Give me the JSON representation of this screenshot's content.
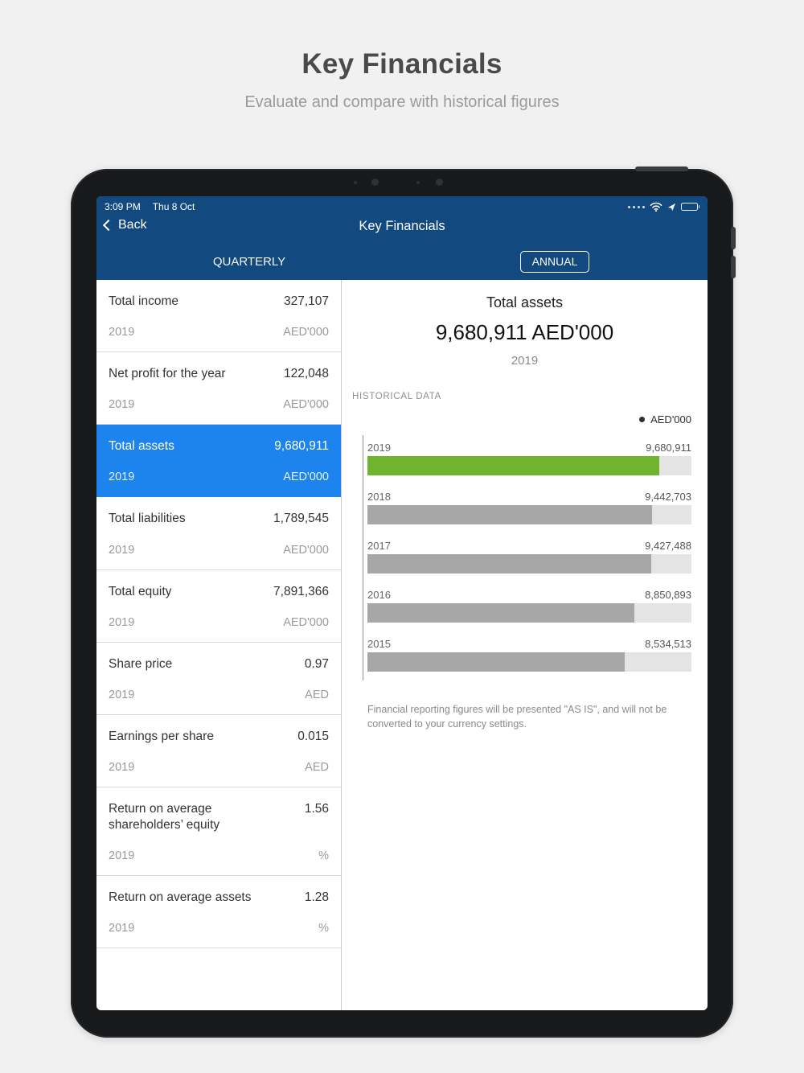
{
  "page": {
    "title": "Key Financials",
    "subtitle": "Evaluate and compare with historical figures"
  },
  "status_bar": {
    "time": "3:09 PM",
    "date": "Thu 8 Oct"
  },
  "nav": {
    "back_label": "Back",
    "title": "Key Financials",
    "tab_quarterly": "QUARTERLY",
    "tab_annual": "ANNUAL"
  },
  "sidebar": {
    "items": [
      {
        "name": "Total income",
        "value": "327,107",
        "year": "2019",
        "unit": "AED'000",
        "selected": false
      },
      {
        "name": "Net profit for the year",
        "value": "122,048",
        "year": "2019",
        "unit": "AED'000",
        "selected": false
      },
      {
        "name": "Total assets",
        "value": "9,680,911",
        "year": "2019",
        "unit": "AED'000",
        "selected": true
      },
      {
        "name": "Total liabilities",
        "value": "1,789,545",
        "year": "2019",
        "unit": "AED'000",
        "selected": false
      },
      {
        "name": "Total equity",
        "value": "7,891,366",
        "year": "2019",
        "unit": "AED'000",
        "selected": false
      },
      {
        "name": "Share price",
        "value": "0.97",
        "year": "2019",
        "unit": "AED",
        "selected": false
      },
      {
        "name": "Earnings per share",
        "value": "0.015",
        "year": "2019",
        "unit": "AED",
        "selected": false
      },
      {
        "name": "Return on average shareholders’ equity",
        "value": "1.56",
        "year": "2019",
        "unit": "%",
        "selected": false
      },
      {
        "name": "Return on average assets",
        "value": "1.28",
        "year": "2019",
        "unit": "%",
        "selected": false
      }
    ]
  },
  "detail": {
    "title": "Total assets",
    "big_value": "9,680,911 AED'000",
    "year": "2019",
    "section_label": "HISTORICAL DATA",
    "legend": "AED'000",
    "footnote": "Financial reporting figures will be presented \"AS IS\", and will not be converted to your currency settings."
  },
  "chart_data": {
    "type": "bar",
    "orientation": "horizontal",
    "title": "Total assets",
    "legend": "AED'000",
    "categories": [
      "2019",
      "2018",
      "2017",
      "2016",
      "2015"
    ],
    "values": [
      9680911,
      9442703,
      9427488,
      8850893,
      8534513
    ],
    "value_labels": [
      "9,680,911",
      "9,442,703",
      "9,427,488",
      "8,850,893",
      "8,534,513"
    ],
    "highlight_index": 0,
    "highlight_color": "#6fb42d",
    "bar_color": "#a7a7a7",
    "track_color": "#e4e4e4",
    "scale_max": 10750000
  }
}
